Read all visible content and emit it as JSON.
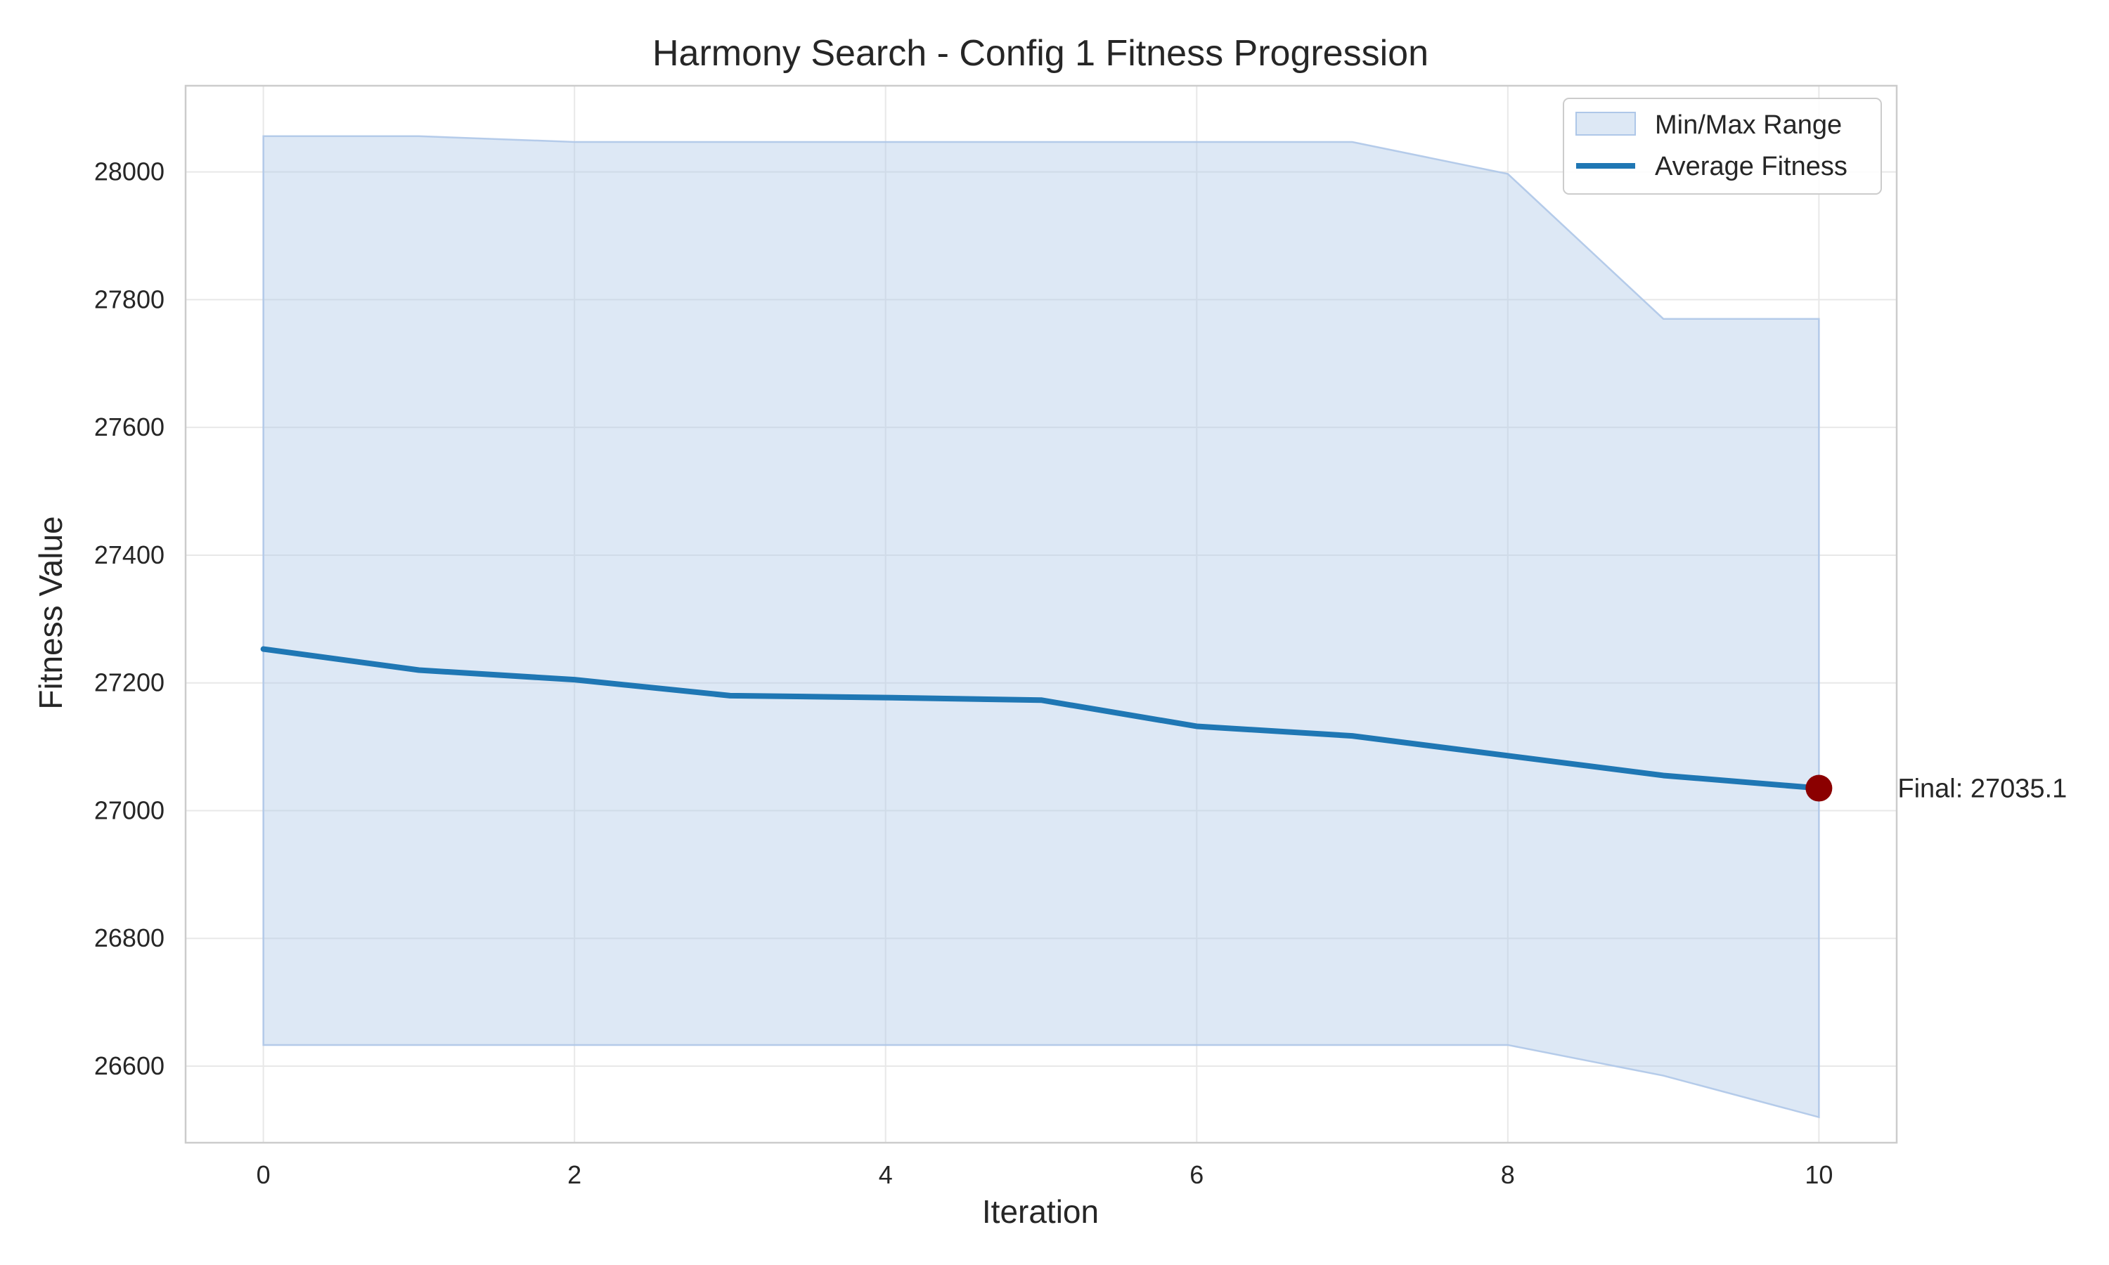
{
  "chart_data": {
    "type": "line",
    "title": "Harmony Search - Config 1 Fitness Progression",
    "xlabel": "Iteration",
    "ylabel": "Fitness Value",
    "xlim": [
      -0.5,
      10.5
    ],
    "ylim": [
      26480,
      28135
    ],
    "x_ticks": [
      0,
      2,
      4,
      6,
      8,
      10
    ],
    "y_ticks": [
      26600,
      26800,
      27000,
      27200,
      27400,
      27600,
      27800,
      28000
    ],
    "grid": true,
    "legend_position": "top-right",
    "x": [
      0,
      1,
      2,
      3,
      4,
      5,
      6,
      7,
      8,
      9,
      10
    ],
    "series": [
      {
        "name": "Average Fitness",
        "kind": "line",
        "color": "#1f77b4",
        "values": [
          27253,
          27220,
          27205,
          27180,
          27177,
          27173,
          27132,
          27117,
          27086,
          27055,
          27035.1
        ]
      },
      {
        "name": "Min/Max Range",
        "kind": "band",
        "color": "#aec7e8",
        "min": [
          26633,
          26633,
          26633,
          26633,
          26633,
          26633,
          26633,
          26633,
          26633,
          26585,
          26520
        ],
        "max": [
          28056,
          28056,
          28047,
          28047,
          28047,
          28047,
          28047,
          28047,
          27997,
          27770,
          27770
        ]
      }
    ],
    "annotations": [
      {
        "x": 10,
        "y": 27035.1,
        "text": "Final: 27035.1",
        "marker_color": "#8b0000"
      }
    ]
  }
}
